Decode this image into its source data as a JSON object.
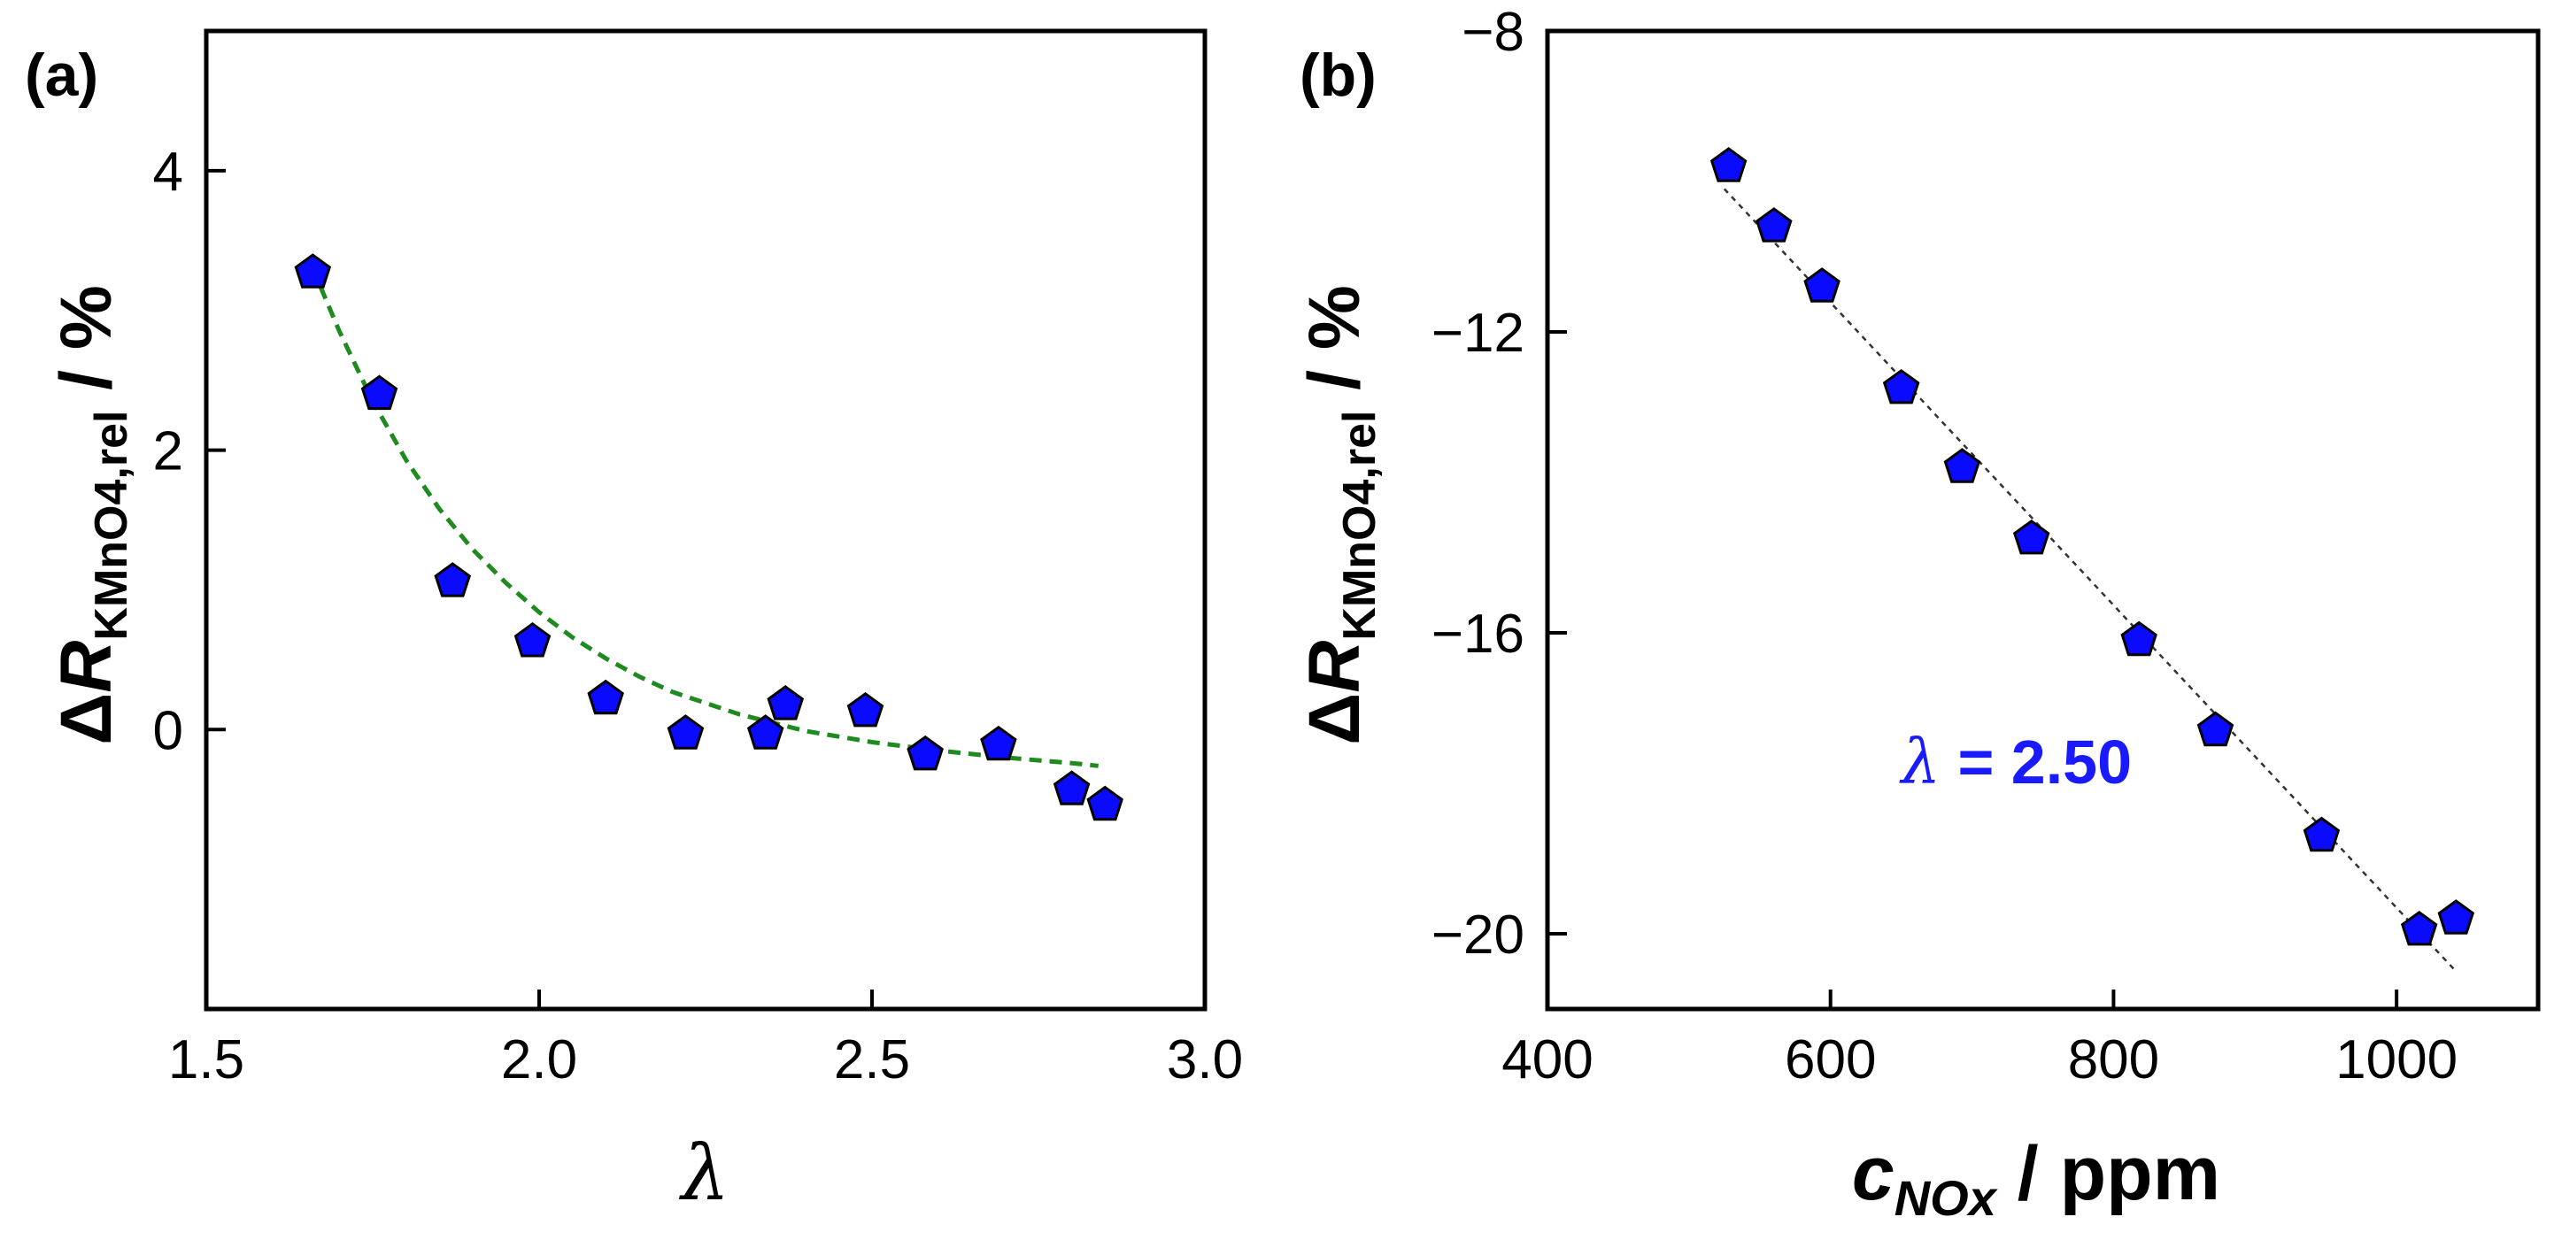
{
  "colors": {
    "marker": "#0a0aff",
    "fit_a": "#1f8a1f",
    "fit_b": "#333333",
    "annotation": "#1a1aff"
  },
  "chart_data": [
    {
      "id": "a",
      "type": "scatter",
      "panel_label": "(a)",
      "xlabel": "λ",
      "ylabel": {
        "delta": "Δ",
        "var": "R",
        "sub": "KMnO4,rel",
        "unit": " / %"
      },
      "xlim": [
        1.5,
        3.0
      ],
      "ylim": [
        -2.0,
        5.0
      ],
      "xticks": [
        1.5,
        2.0,
        2.5,
        3.0
      ],
      "xtick_labels": [
        "1.5",
        "2.0",
        "2.5",
        "3.0"
      ],
      "yticks": [
        0,
        2,
        4
      ],
      "ytick_labels": [
        "0",
        "2",
        "4"
      ],
      "grid": false,
      "points": {
        "x": [
          1.66,
          1.76,
          1.87,
          1.99,
          2.1,
          2.22,
          2.34,
          2.37,
          2.49,
          2.58,
          2.69,
          2.8,
          2.85
        ],
        "y": [
          3.27,
          2.4,
          1.06,
          0.63,
          0.22,
          -0.03,
          -0.03,
          0.18,
          0.13,
          -0.18,
          -0.11,
          -0.43,
          -0.54
        ]
      },
      "fit": {
        "style": "dashed",
        "x": [
          1.66,
          1.7,
          1.75,
          1.8,
          1.85,
          1.9,
          1.95,
          2.0,
          2.05,
          2.1,
          2.15,
          2.2,
          2.3,
          2.4,
          2.5,
          2.6,
          2.7,
          2.8,
          2.84
        ],
        "y": [
          3.3,
          2.85,
          2.35,
          1.93,
          1.58,
          1.29,
          1.05,
          0.84,
          0.66,
          0.51,
          0.38,
          0.27,
          0.11,
          -0.01,
          -0.09,
          -0.15,
          -0.2,
          -0.24,
          -0.26
        ]
      }
    },
    {
      "id": "b",
      "type": "scatter",
      "panel_label": "(b)",
      "xlabel": {
        "var": "c",
        "sub": "NOx",
        "unit": " / ppm"
      },
      "ylabel": {
        "delta": "Δ",
        "var": "R",
        "sub": "KMnO4,rel",
        "unit": " / %"
      },
      "xlim": [
        400,
        1100
      ],
      "ylim": [
        -21,
        -8
      ],
      "xticks": [
        400,
        600,
        800,
        1000
      ],
      "xtick_labels": [
        "400",
        "600",
        "800",
        "1000"
      ],
      "yticks": [
        -8,
        -12,
        -16,
        -20
      ],
      "ytick_labels": [
        "−8",
        "−12",
        "−16",
        "−20"
      ],
      "grid": false,
      "points": {
        "x": [
          528,
          560,
          594,
          650,
          693,
          742,
          818,
          872,
          947,
          1016,
          1042
        ],
        "y": [
          -9.8,
          -10.6,
          -11.4,
          -12.75,
          -13.8,
          -14.75,
          -16.1,
          -17.3,
          -18.7,
          -19.95,
          -19.8
        ]
      },
      "fit": {
        "style": "dotted",
        "x": [
          525,
          1042
        ],
        "y": [
          -10.1,
          -20.5
        ]
      },
      "annotation": {
        "symbol": "λ",
        "text": " = 2.50",
        "x": 650,
        "y": -18.0
      }
    }
  ]
}
